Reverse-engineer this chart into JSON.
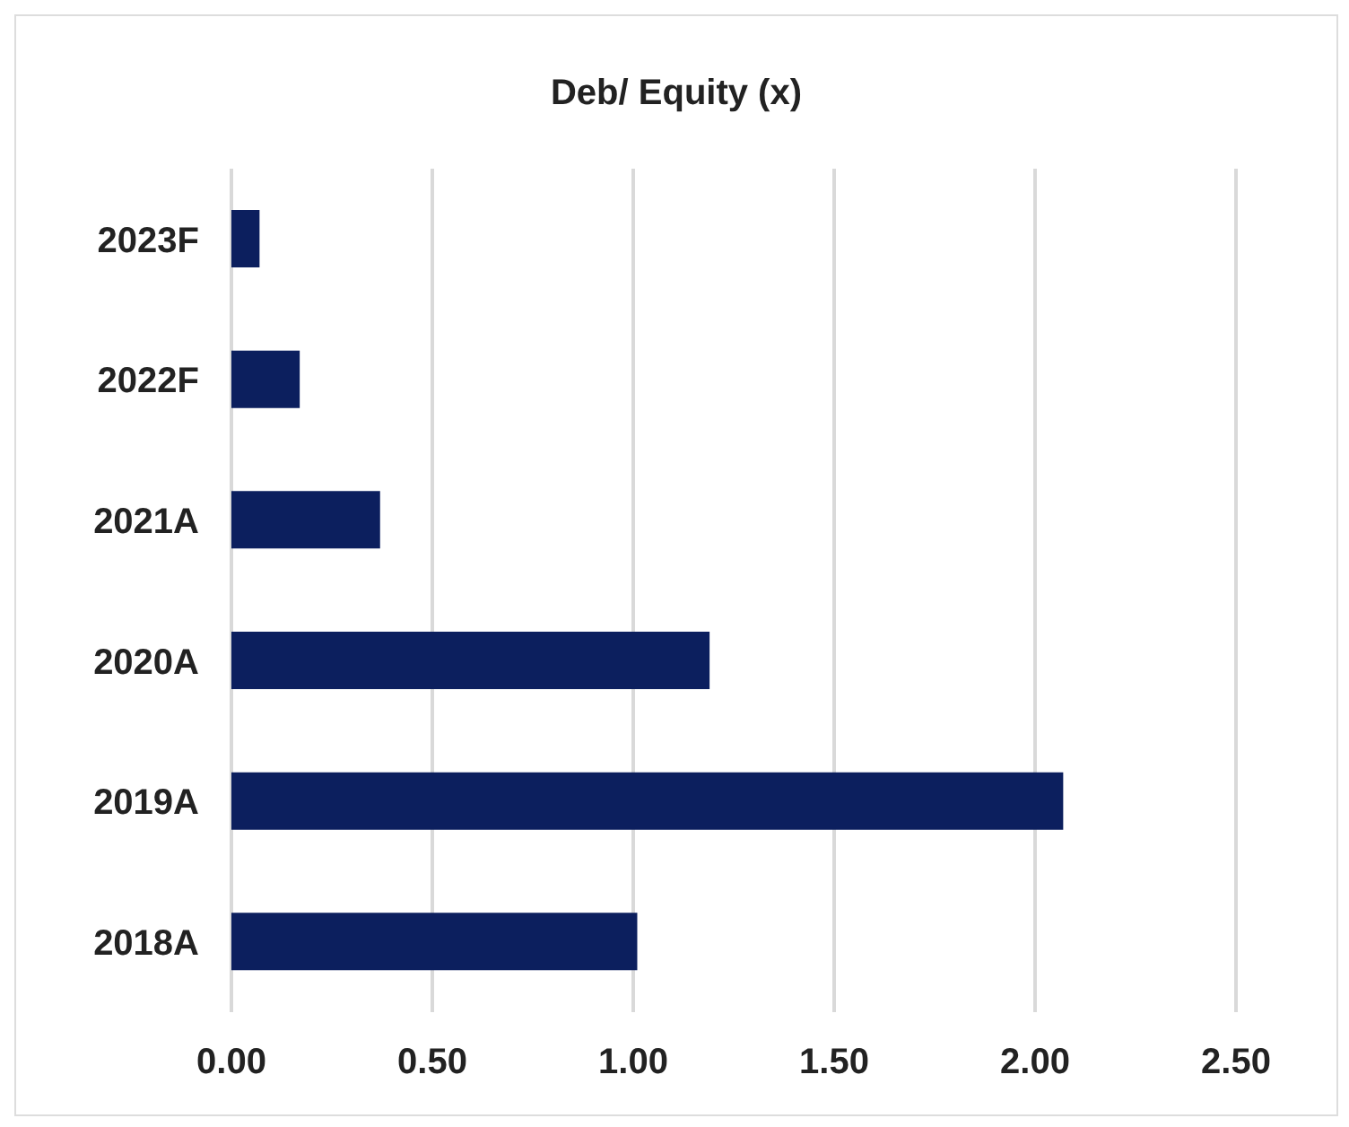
{
  "chart_data": {
    "type": "bar",
    "orientation": "horizontal",
    "title": "Deb/ Equity (x)",
    "categories": [
      "2023F",
      "2022F",
      "2021A",
      "2020A",
      "2019A",
      "2018A"
    ],
    "values": [
      0.07,
      0.17,
      0.37,
      1.19,
      2.07,
      1.01
    ],
    "color": "#0c1f5e",
    "xlim": [
      0,
      2.5
    ],
    "xticks": [
      {
        "value": 0,
        "label": "0.00"
      },
      {
        "value": 0.5,
        "label": "0.50"
      },
      {
        "value": 1,
        "label": "1.00"
      },
      {
        "value": 1.5,
        "label": "1.50"
      },
      {
        "value": 2,
        "label": "2.00"
      },
      {
        "value": 2.5,
        "label": "2.50"
      }
    ],
    "grid": "x"
  }
}
